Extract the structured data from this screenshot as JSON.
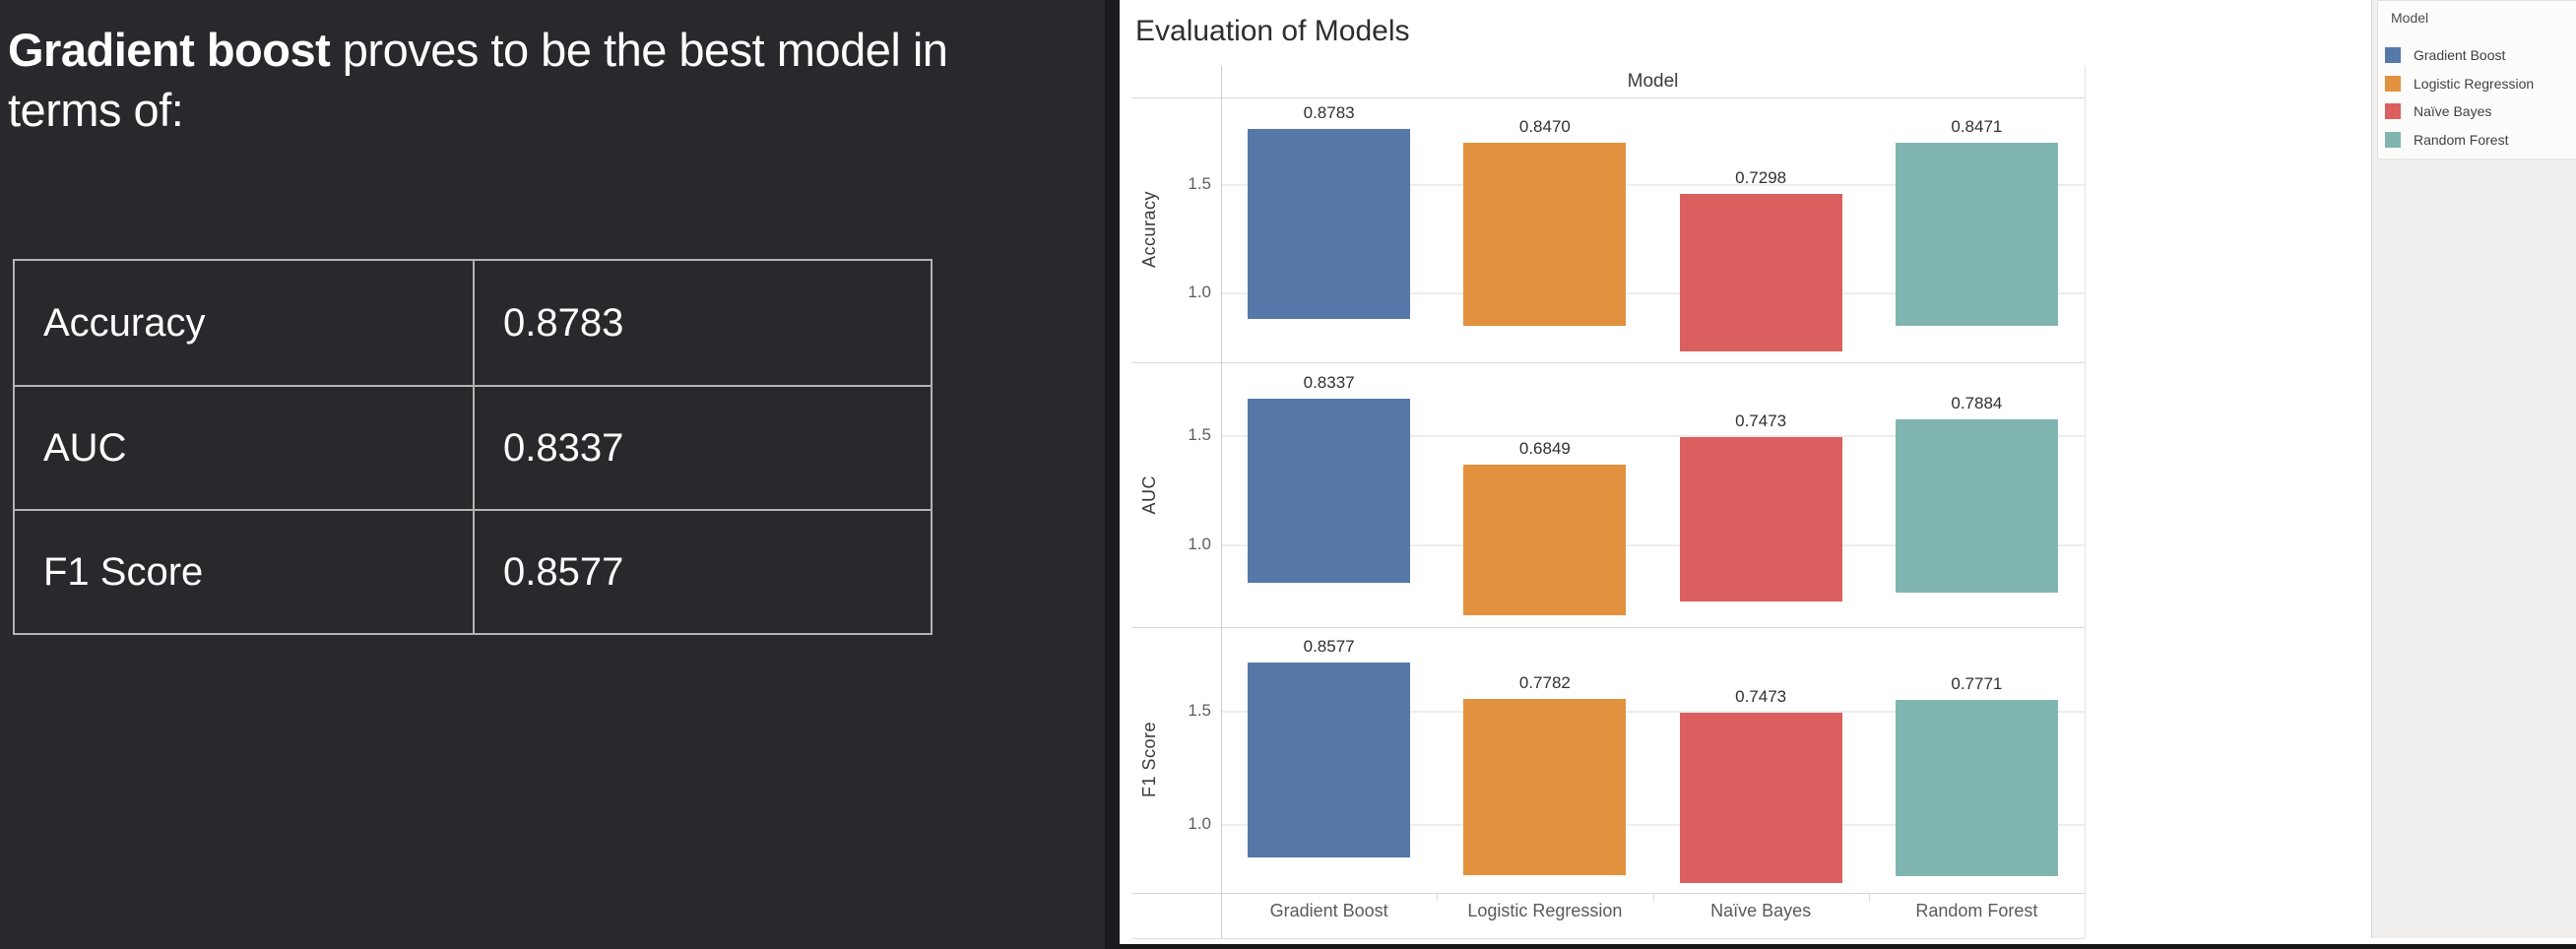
{
  "left_panel": {
    "title_bold": "Gradient boost",
    "title_rest": " proves to be the best model in terms of:",
    "table": {
      "rows": [
        {
          "label": "Accuracy",
          "value": "0.8783"
        },
        {
          "label": "AUC",
          "value": "0.8337"
        },
        {
          "label": "F1 Score",
          "value": "0.8577"
        }
      ]
    }
  },
  "chart": {
    "title": "Evaluation of Models",
    "column_header": "Model"
  },
  "chart_data": {
    "type": "bar",
    "title": "Evaluation of Models",
    "column_header": "Model",
    "categories": [
      "Gradient Boost",
      "Logistic Regression",
      "Naïve Bayes",
      "Random Forest"
    ],
    "facets": [
      {
        "metric": "Accuracy",
        "values": [
          0.8783,
          0.847,
          0.7298,
          0.8471
        ],
        "value_labels": [
          "0.8783",
          "0.8470",
          "0.7298",
          "0.8471"
        ],
        "ylim": [
          0.68,
          1.903
        ]
      },
      {
        "metric": "AUC",
        "values": [
          0.8337,
          0.6849,
          0.7473,
          0.7884
        ],
        "value_labels": [
          "0.8337",
          "0.6849",
          "0.7473",
          "0.7884"
        ],
        "ylim": [
          0.63,
          1.835
        ]
      },
      {
        "metric": "F1 Score",
        "values": [
          0.8577,
          0.7782,
          0.7473,
          0.7771
        ],
        "value_labels": [
          "0.8577",
          "0.7782",
          "0.7473",
          "0.7771"
        ],
        "ylim": [
          0.702,
          1.873
        ]
      }
    ],
    "yticks": [
      {
        "value": 1.5,
        "label": "1.5"
      },
      {
        "value": 1.0,
        "label": "1.0"
      }
    ],
    "colors": {
      "Gradient Boost": "#5578a8",
      "Logistic Regression": "#e2913f",
      "Naïve Bayes": "#db5f5e",
      "Random Forest": "#81b5b0"
    },
    "bar_geometry": "floating bars: each bar spans from value to 2*value on the y-axis",
    "grid": true,
    "legend_position": "right"
  },
  "legend": {
    "title": "Model",
    "items": [
      {
        "label": "Gradient Boost",
        "color": "#5578a8"
      },
      {
        "label": "Logistic Regression",
        "color": "#e2913f"
      },
      {
        "label": "Naïve Bayes",
        "color": "#db5f5e"
      },
      {
        "label": "Random Forest",
        "color": "#81b5b0"
      }
    ]
  }
}
